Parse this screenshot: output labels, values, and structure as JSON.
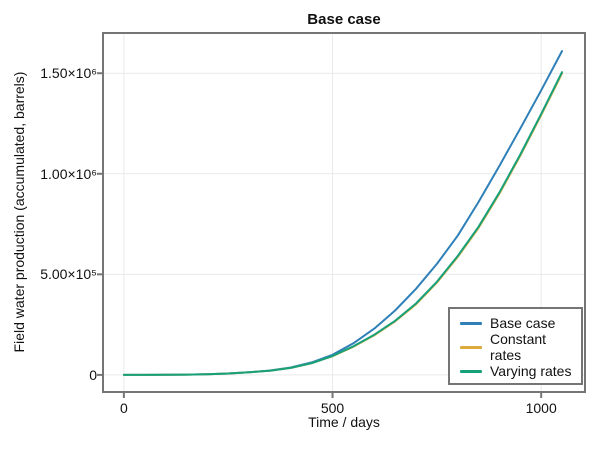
{
  "chart_data": {
    "type": "line",
    "title": "Base case",
    "xlabel": "Time / days",
    "ylabel": "Field water production (accumulated, barrels)",
    "xlim": [
      -50,
      1105
    ],
    "ylim": [
      -85000,
      1700000
    ],
    "grid": true,
    "legend_position": "bottom-right",
    "frame_color": "#757575",
    "grid_color": "#e9e9e9",
    "x_ticks": [
      {
        "value": 0,
        "label": "0"
      },
      {
        "value": 500,
        "label": "500"
      },
      {
        "value": 1000,
        "label": "1000"
      }
    ],
    "y_ticks": [
      {
        "value": 0,
        "label": "0"
      },
      {
        "value": 500000,
        "label": "5.00×10⁵"
      },
      {
        "value": 1000000,
        "label": "1.00×10⁶"
      },
      {
        "value": 1500000,
        "label": "1.50×10⁶"
      }
    ],
    "x": [
      0,
      50,
      100,
      150,
      200,
      250,
      300,
      350,
      400,
      450,
      500,
      550,
      600,
      650,
      700,
      750,
      800,
      850,
      900,
      950,
      1000,
      1050
    ],
    "series": [
      {
        "name": "Base case",
        "color": "#2f80b8",
        "values": [
          0,
          0,
          500,
          1500,
          3500,
          7000,
          13000,
          22000,
          37000,
          62000,
          100000,
          157000,
          230000,
          320000,
          428000,
          552000,
          692000,
          860000,
          1040000,
          1225000,
          1415000,
          1610000
        ]
      },
      {
        "name": "Constant rates",
        "color": "#dcaa3d",
        "values": [
          0,
          0,
          500,
          1500,
          3500,
          7000,
          13000,
          21000,
          35000,
          58000,
          93000,
          140000,
          197000,
          266000,
          351000,
          459000,
          586000,
          731000,
          902000,
          1090000,
          1292000,
          1498000
        ]
      },
      {
        "name": "Varying rates",
        "color": "#17a17a",
        "values": [
          0,
          0,
          500,
          1500,
          3500,
          7000,
          13000,
          21000,
          35000,
          58000,
          94000,
          142000,
          200000,
          269000,
          355000,
          463000,
          591000,
          737000,
          908000,
          1096000,
          1298000,
          1505000
        ]
      }
    ]
  }
}
